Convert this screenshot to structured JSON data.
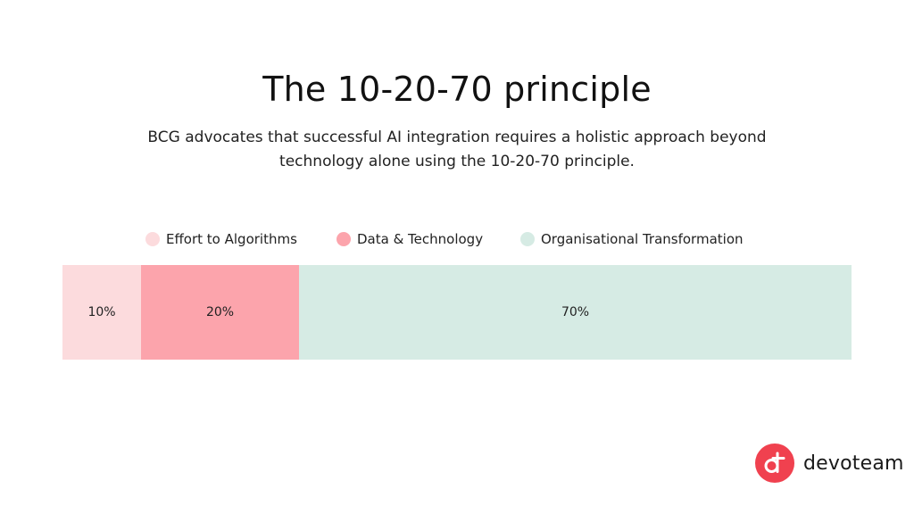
{
  "header": {
    "title": "The 10-20-70 principle",
    "subtitle": "BCG advocates that successful AI integration requires a holistic approach beyond technology alone using the 10-20-70 principle."
  },
  "chart_data": {
    "type": "bar",
    "orientation": "horizontal-stacked",
    "total": 100,
    "legend_placement": "top",
    "grid": false,
    "series": [
      {
        "name": "Effort to Algorithms",
        "value": 10,
        "label": "10%",
        "color": "#fcdbdd"
      },
      {
        "name": "Data & Technology",
        "value": 20,
        "label": "20%",
        "color": "#fca4ac"
      },
      {
        "name": "Organisational Transformation",
        "value": 70,
        "label": "70%",
        "color": "#d6ebe4"
      }
    ]
  },
  "brand": {
    "name": "devoteam",
    "color": "#f0414f",
    "icon": "devoteam-logo-icon"
  }
}
